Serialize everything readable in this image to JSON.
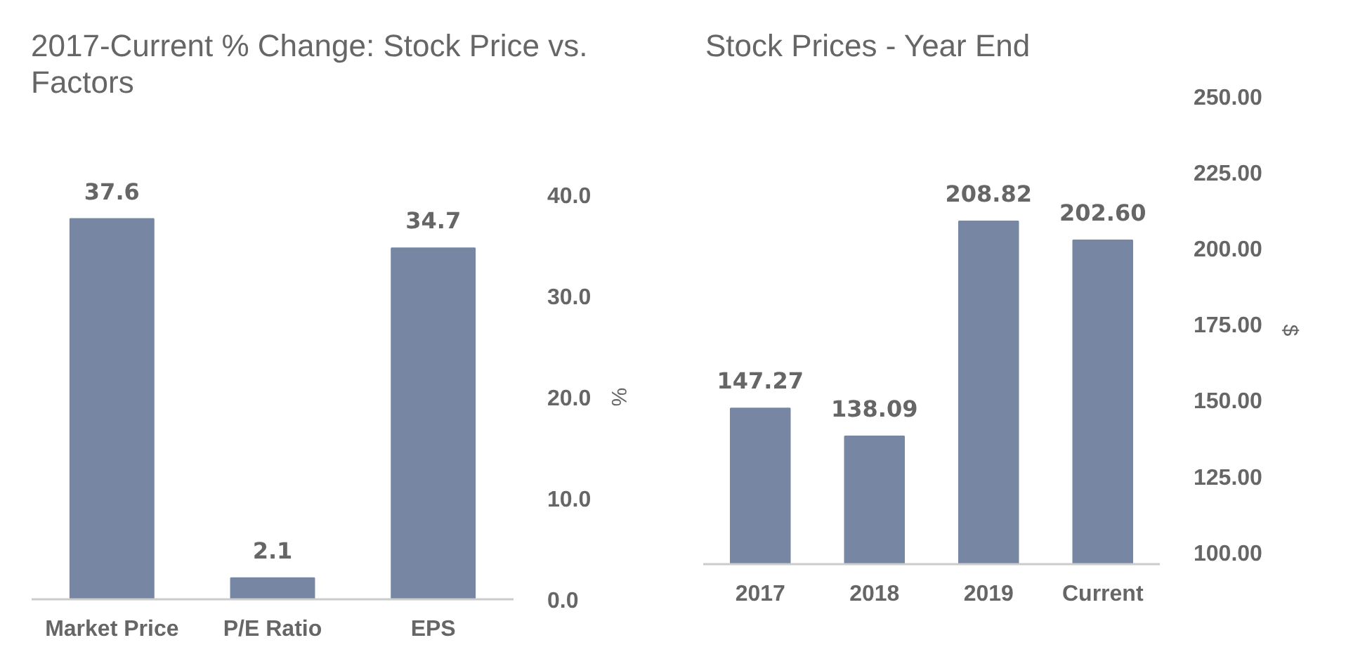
{
  "chart_data": [
    {
      "type": "bar",
      "title": "2017-Current % Change: Stock Price vs. Factors",
      "ylabel": "%",
      "categories": [
        "Market Price",
        "P/E Ratio",
        "EPS"
      ],
      "values": [
        37.6,
        2.1,
        34.7
      ],
      "color": "#7787a3",
      "ylim": [
        0,
        40
      ],
      "yticks": [
        {
          "value": 0,
          "label": "0.0"
        },
        {
          "value": 10,
          "label": "10.0"
        },
        {
          "value": 20,
          "label": "20.0"
        },
        {
          "value": 30,
          "label": "30.0"
        },
        {
          "value": 40,
          "label": "40.0"
        }
      ],
      "data_labels": true
    },
    {
      "type": "bar",
      "title": "Stock Prices - Year End",
      "ylabel": "$",
      "categories": [
        "2017",
        "2018",
        "2019",
        "Current"
      ],
      "values": [
        147.27,
        138.09,
        208.82,
        202.6
      ],
      "value_labels": [
        "147.27",
        "138.09",
        "208.82",
        "202.60"
      ],
      "color": "#7787a3",
      "ylim": [
        96,
        250
      ],
      "yticks": [
        {
          "value": 100,
          "label": "100.00"
        },
        {
          "value": 125,
          "label": "125.00"
        },
        {
          "value": 150,
          "label": "150.00"
        },
        {
          "value": 175,
          "label": "175.00"
        },
        {
          "value": 200,
          "label": "200.00"
        },
        {
          "value": 225,
          "label": "225.00"
        },
        {
          "value": 250,
          "label": "250.00"
        }
      ]
    }
  ]
}
